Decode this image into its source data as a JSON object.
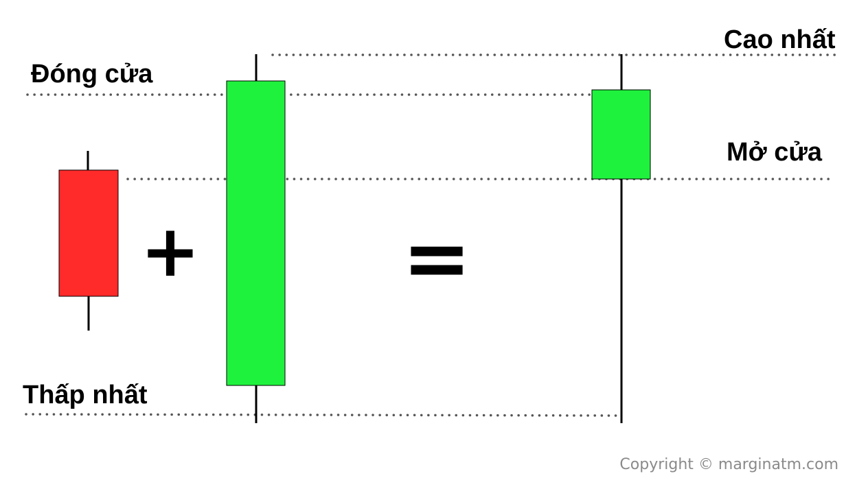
{
  "labels": {
    "high": "Cao nhất",
    "close": "Đóng cửa",
    "open": "Mở cửa",
    "low": "Thấp nhất"
  },
  "operators": {
    "plus": "+",
    "equals": "="
  },
  "copyright": "Copyright © marginatm.com",
  "colors": {
    "bearish": "#ff2a2a",
    "bullish": "#1ff23d",
    "guide": "#555555",
    "copyright": "#8a8a8a"
  }
}
